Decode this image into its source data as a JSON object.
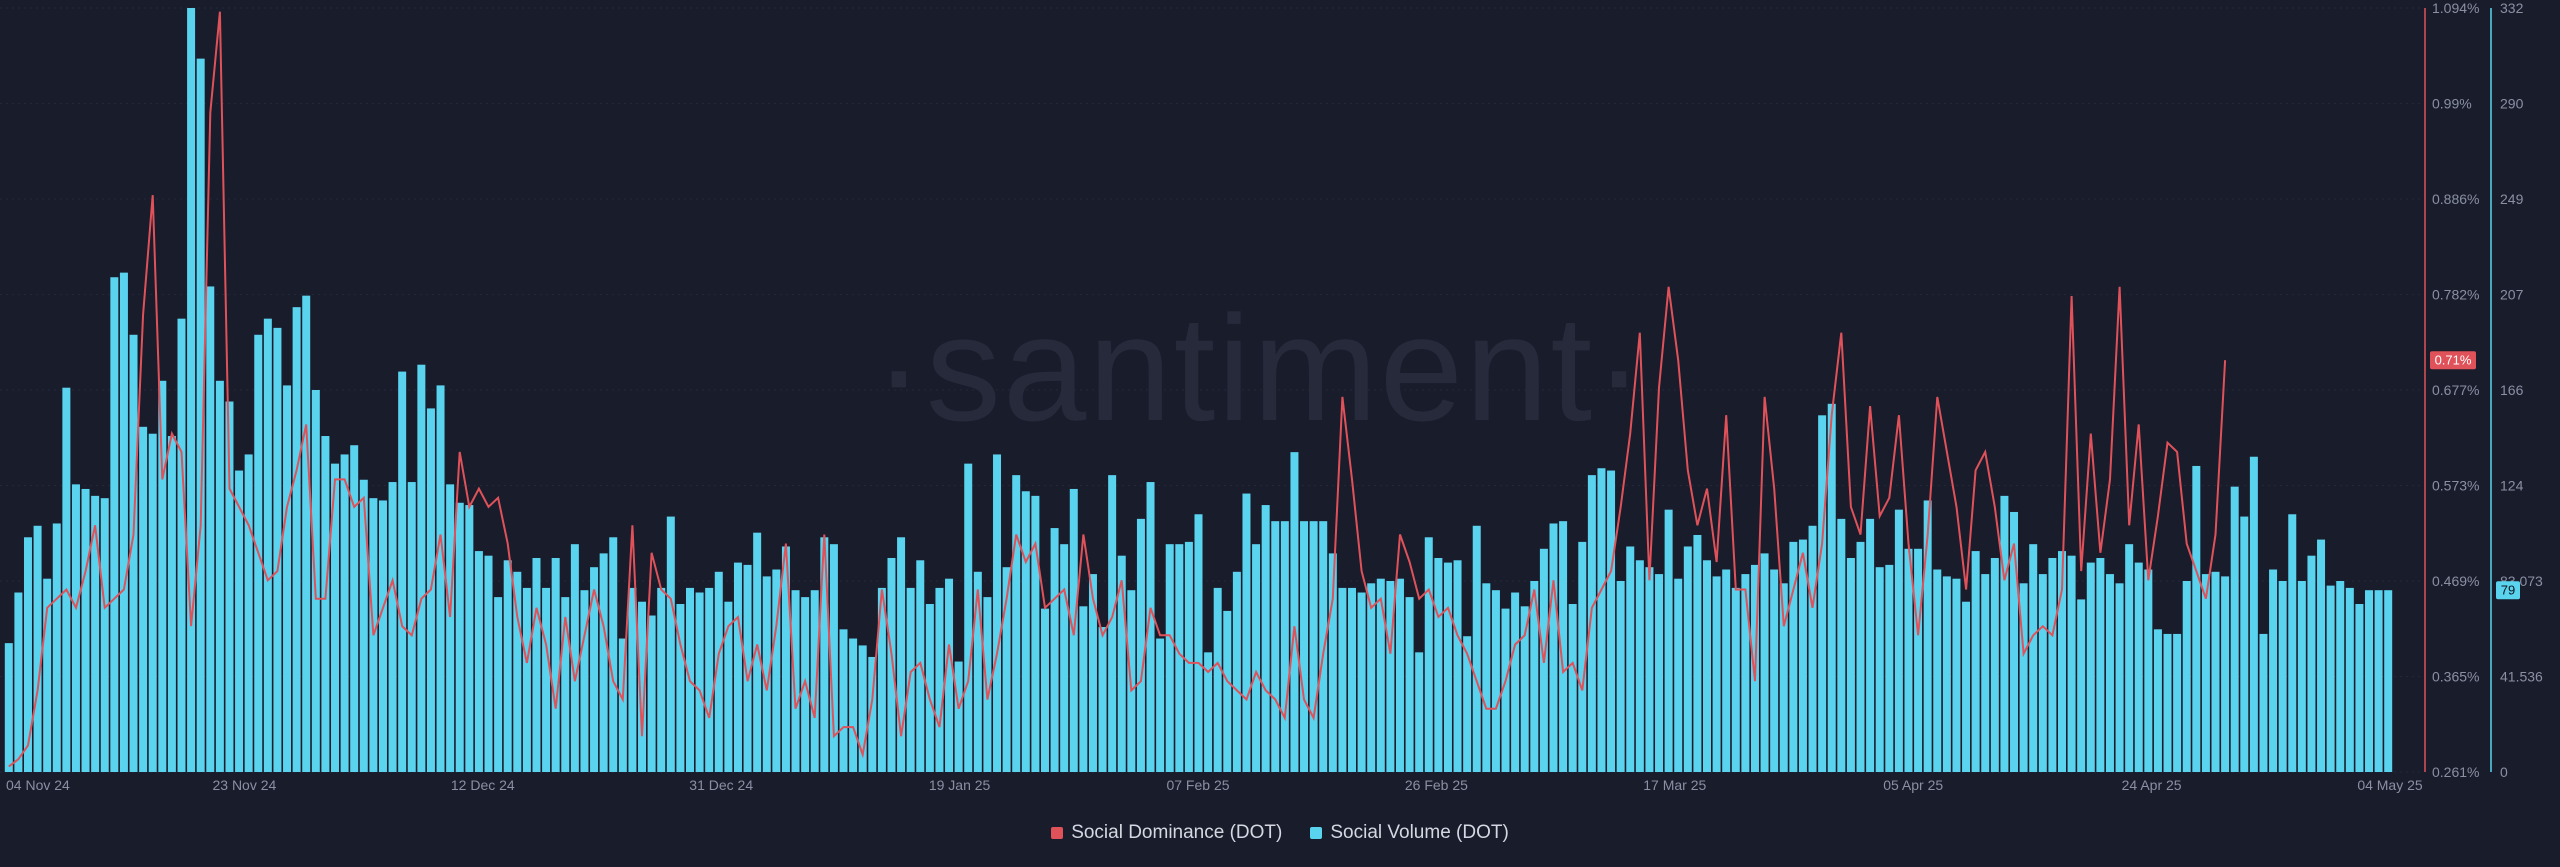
{
  "chart_data": {
    "type": "bar",
    "watermark": "·santiment·",
    "x_tick_labels": [
      "04 Nov 24",
      "23 Nov 24",
      "12 Dec 24",
      "31 Dec 24",
      "19 Jan 25",
      "07 Feb 25",
      "26 Feb 25",
      "17 Mar 25",
      "05 Apr 25",
      "24 Apr 25",
      "04 May 25"
    ],
    "x_range": [
      "2024-11-04",
      "2025-05-04"
    ],
    "y_right_dominance_ticks": [
      "1.094%",
      "0.99%",
      "0.886%",
      "0.782%",
      "0.677%",
      "0.573%",
      "0.469%",
      "0.365%",
      "0.261%"
    ],
    "y_right_volume_ticks": [
      "332",
      "290",
      "249",
      "207",
      "166",
      "124",
      "83.073",
      "41.536",
      "0"
    ],
    "dominance_ylim": [
      0.261,
      1.094
    ],
    "volume_ylim": [
      0,
      332
    ],
    "current_dominance_label": "0.71%",
    "current_volume_label": "79",
    "colors": {
      "dominance": "#e0525a",
      "volume": "#5ad3ef",
      "background": "#191c2b"
    },
    "legend": [
      {
        "name": "Social Dominance (DOT)",
        "color": "#e0525a"
      },
      {
        "name": "Social Volume (DOT)",
        "color": "#5ad3ef"
      }
    ],
    "series": [
      {
        "name": "Social Volume (DOT)",
        "type": "bar",
        "values": [
          56,
          78,
          102,
          107,
          84,
          108,
          167,
          125,
          123,
          120,
          119,
          215,
          217,
          190,
          150,
          147,
          170,
          146,
          197,
          332,
          310,
          211,
          170,
          161,
          131,
          138,
          190,
          197,
          193,
          168,
          202,
          207,
          166,
          146,
          134,
          138,
          142,
          127,
          119,
          118,
          126,
          174,
          126,
          177,
          158,
          168,
          125,
          117,
          116,
          96,
          94,
          76,
          92,
          87,
          80,
          93,
          80,
          93,
          76,
          99,
          79,
          89,
          95,
          102,
          58,
          80,
          74,
          68,
          80,
          111,
          73,
          80,
          78,
          80,
          87,
          74,
          91,
          90,
          104,
          85,
          88,
          98,
          79,
          76,
          79,
          102,
          99,
          62,
          58,
          55,
          50,
          80,
          93,
          102,
          80,
          92,
          73,
          80,
          84,
          48,
          134,
          87,
          76,
          138,
          89,
          129,
          122,
          120,
          71,
          106,
          99,
          123,
          72,
          86,
          63,
          129,
          94,
          79,
          110,
          126,
          58,
          99,
          99,
          100,
          112,
          52,
          80,
          70,
          87,
          121,
          99,
          116,
          109,
          109,
          139,
          109,
          109,
          109,
          95,
          80,
          80,
          78,
          82,
          84,
          83,
          84,
          76,
          52,
          102,
          93,
          91,
          92,
          59,
          107,
          82,
          79,
          71,
          78,
          72,
          83,
          97,
          108,
          109,
          73,
          100,
          129,
          132,
          131,
          83,
          98,
          92,
          89,
          86,
          114,
          84,
          98,
          103,
          92,
          85,
          88,
          80,
          86,
          90,
          95,
          88,
          82,
          100,
          101,
          107,
          155,
          160,
          110,
          93,
          100,
          110,
          89,
          90,
          114,
          97,
          97,
          118,
          88,
          85,
          84,
          74,
          96,
          86,
          93,
          120,
          113,
          82,
          99,
          86,
          93,
          96,
          94,
          75,
          91,
          93,
          86,
          82,
          99,
          91,
          88,
          62,
          60,
          60,
          83,
          133,
          86,
          87,
          85,
          124,
          111,
          137,
          60,
          88,
          83,
          112,
          83,
          94,
          101,
          81,
          83,
          80,
          73,
          79,
          79,
          79
        ],
        "note_values_not_printed": true
      },
      {
        "name": "Social Dominance (DOT)",
        "type": "line",
        "values": [
          0.267,
          0.275,
          0.29,
          0.35,
          0.44,
          0.45,
          0.46,
          0.44,
          0.48,
          0.53,
          0.44,
          0.45,
          0.46,
          0.52,
          0.76,
          0.89,
          0.58,
          0.63,
          0.61,
          0.42,
          0.53,
          0.98,
          1.09,
          0.57,
          0.55,
          0.53,
          0.5,
          0.47,
          0.48,
          0.55,
          0.59,
          0.64,
          0.45,
          0.45,
          0.58,
          0.58,
          0.55,
          0.56,
          0.41,
          0.44,
          0.47,
          0.42,
          0.41,
          0.45,
          0.46,
          0.52,
          0.43,
          0.61,
          0.55,
          0.57,
          0.55,
          0.56,
          0.51,
          0.43,
          0.38,
          0.44,
          0.4,
          0.33,
          0.43,
          0.36,
          0.41,
          0.46,
          0.42,
          0.36,
          0.34,
          0.53,
          0.3,
          0.5,
          0.46,
          0.45,
          0.4,
          0.36,
          0.35,
          0.32,
          0.39,
          0.42,
          0.43,
          0.36,
          0.4,
          0.35,
          0.42,
          0.51,
          0.33,
          0.36,
          0.32,
          0.52,
          0.3,
          0.31,
          0.31,
          0.28,
          0.34,
          0.46,
          0.39,
          0.3,
          0.37,
          0.38,
          0.34,
          0.31,
          0.4,
          0.33,
          0.36,
          0.46,
          0.34,
          0.39,
          0.45,
          0.52,
          0.49,
          0.51,
          0.44,
          0.45,
          0.46,
          0.41,
          0.52,
          0.45,
          0.41,
          0.43,
          0.47,
          0.35,
          0.36,
          0.44,
          0.41,
          0.41,
          0.39,
          0.38,
          0.38,
          0.37,
          0.38,
          0.36,
          0.35,
          0.34,
          0.37,
          0.35,
          0.34,
          0.32,
          0.42,
          0.34,
          0.32,
          0.39,
          0.45,
          0.67,
          0.58,
          0.48,
          0.44,
          0.45,
          0.39,
          0.52,
          0.49,
          0.45,
          0.46,
          0.43,
          0.44,
          0.41,
          0.39,
          0.36,
          0.33,
          0.33,
          0.36,
          0.4,
          0.41,
          0.46,
          0.38,
          0.47,
          0.37,
          0.38,
          0.35,
          0.44,
          0.46,
          0.48,
          0.55,
          0.63,
          0.74,
          0.47,
          0.68,
          0.79,
          0.71,
          0.59,
          0.53,
          0.57,
          0.49,
          0.65,
          0.46,
          0.46,
          0.36,
          0.67,
          0.57,
          0.42,
          0.46,
          0.5,
          0.44,
          0.51,
          0.65,
          0.74,
          0.55,
          0.52,
          0.66,
          0.54,
          0.56,
          0.65,
          0.51,
          0.41,
          0.52,
          0.67,
          0.61,
          0.55,
          0.46,
          0.59,
          0.61,
          0.55,
          0.47,
          0.51,
          0.39,
          0.41,
          0.42,
          0.41,
          0.46,
          0.78,
          0.48,
          0.63,
          0.5,
          0.58,
          0.79,
          0.53,
          0.64,
          0.47,
          0.54,
          0.62,
          0.61,
          0.51,
          0.48,
          0.45,
          0.52,
          0.71
        ]
      }
    ]
  }
}
